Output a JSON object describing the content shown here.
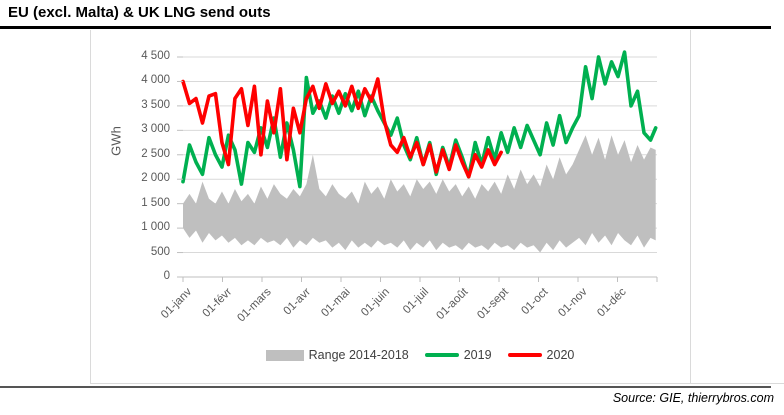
{
  "title": "EU (excl. Malta) & UK LNG send outs",
  "source": "Source: GIE, thierrybros.com",
  "y_axis_title": "GWh",
  "legend": [
    {
      "label": "Range 2014-2018",
      "color": "#BFBFBF",
      "swatch": "area"
    },
    {
      "label": "2019",
      "color": "#00B050",
      "swatch": "line"
    },
    {
      "label": "2020",
      "color": "#FF0000",
      "swatch": "line"
    }
  ],
  "colors": {
    "band": "#BFBFBF",
    "series_2019": "#00B050",
    "series_2020": "#FF0000",
    "gridline": "#D9D9D9",
    "axis": "#BFBFBF",
    "tick_label": "#595959"
  },
  "chart_data": {
    "type": "line",
    "title": "EU (excl. Malta) & UK LNG send outs",
    "xlabel": "",
    "ylabel": "GWh",
    "ylim": [
      0,
      4500
    ],
    "y_tick_step": 500,
    "y_tick_labels": [
      "0",
      "500",
      "1 000",
      "1 500",
      "2 000",
      "2 500",
      "3 000",
      "3 500",
      "4 000",
      "4 500"
    ],
    "x_tick_labels": [
      "01-janv",
      "01-févr",
      "01-mars",
      "01-avr",
      "01-mai",
      "01-juin",
      "01-juil",
      "01-août",
      "01-sept",
      "01-oct",
      "01-nov",
      "01-déc"
    ],
    "x_unit": "day_of_year",
    "x_range_days": [
      0,
      365
    ],
    "grid": "horizontal",
    "legend_position": "bottom",
    "band": {
      "name": "Range 2014-2018",
      "max_points": [
        [
          0,
          1500
        ],
        [
          5,
          1700
        ],
        [
          10,
          1500
        ],
        [
          15,
          1950
        ],
        [
          20,
          1600
        ],
        [
          25,
          1500
        ],
        [
          30,
          1750
        ],
        [
          35,
          1500
        ],
        [
          40,
          1800
        ],
        [
          45,
          1550
        ],
        [
          50,
          1700
        ],
        [
          55,
          1500
        ],
        [
          60,
          1850
        ],
        [
          65,
          1600
        ],
        [
          70,
          1900
        ],
        [
          75,
          1700
        ],
        [
          80,
          1600
        ],
        [
          85,
          1800
        ],
        [
          90,
          1650
        ],
        [
          95,
          1900
        ],
        [
          100,
          2500
        ],
        [
          105,
          1800
        ],
        [
          110,
          1650
        ],
        [
          115,
          1900
        ],
        [
          120,
          1700
        ],
        [
          125,
          1600
        ],
        [
          130,
          1750
        ],
        [
          135,
          1500
        ],
        [
          140,
          1950
        ],
        [
          145,
          1700
        ],
        [
          150,
          1850
        ],
        [
          155,
          1600
        ],
        [
          160,
          2000
        ],
        [
          165,
          1750
        ],
        [
          170,
          1900
        ],
        [
          175,
          1650
        ],
        [
          180,
          2000
        ],
        [
          185,
          1800
        ],
        [
          190,
          1950
        ],
        [
          195,
          1700
        ],
        [
          200,
          2000
        ],
        [
          205,
          1750
        ],
        [
          210,
          1900
        ],
        [
          215,
          1650
        ],
        [
          220,
          1850
        ],
        [
          225,
          1600
        ],
        [
          230,
          1900
        ],
        [
          235,
          1750
        ],
        [
          240,
          1950
        ],
        [
          245,
          1700
        ],
        [
          250,
          2100
        ],
        [
          255,
          1800
        ],
        [
          260,
          2200
        ],
        [
          265,
          1900
        ],
        [
          270,
          2100
        ],
        [
          275,
          1850
        ],
        [
          280,
          2300
        ],
        [
          285,
          2000
        ],
        [
          290,
          2450
        ],
        [
          295,
          2100
        ],
        [
          300,
          2300
        ],
        [
          305,
          2600
        ],
        [
          310,
          2900
        ],
        [
          315,
          2500
        ],
        [
          320,
          2850
        ],
        [
          325,
          2400
        ],
        [
          330,
          2900
        ],
        [
          335,
          2500
        ],
        [
          340,
          2800
        ],
        [
          345,
          2350
        ],
        [
          350,
          2700
        ],
        [
          355,
          2400
        ],
        [
          360,
          2650
        ],
        [
          364,
          2600
        ]
      ],
      "min_points": [
        [
          0,
          1000
        ],
        [
          5,
          800
        ],
        [
          10,
          950
        ],
        [
          15,
          700
        ],
        [
          20,
          900
        ],
        [
          25,
          750
        ],
        [
          30,
          850
        ],
        [
          35,
          700
        ],
        [
          40,
          800
        ],
        [
          45,
          650
        ],
        [
          50,
          750
        ],
        [
          55,
          650
        ],
        [
          60,
          800
        ],
        [
          65,
          700
        ],
        [
          70,
          750
        ],
        [
          75,
          650
        ],
        [
          80,
          800
        ],
        [
          85,
          600
        ],
        [
          90,
          750
        ],
        [
          95,
          650
        ],
        [
          100,
          800
        ],
        [
          105,
          700
        ],
        [
          110,
          750
        ],
        [
          115,
          600
        ],
        [
          120,
          700
        ],
        [
          125,
          550
        ],
        [
          130,
          750
        ],
        [
          135,
          600
        ],
        [
          140,
          700
        ],
        [
          145,
          600
        ],
        [
          150,
          750
        ],
        [
          155,
          650
        ],
        [
          160,
          700
        ],
        [
          165,
          600
        ],
        [
          170,
          750
        ],
        [
          175,
          550
        ],
        [
          180,
          700
        ],
        [
          185,
          600
        ],
        [
          190,
          750
        ],
        [
          195,
          550
        ],
        [
          200,
          700
        ],
        [
          205,
          600
        ],
        [
          210,
          650
        ],
        [
          215,
          550
        ],
        [
          220,
          700
        ],
        [
          225,
          600
        ],
        [
          230,
          650
        ],
        [
          235,
          550
        ],
        [
          240,
          700
        ],
        [
          245,
          600
        ],
        [
          250,
          650
        ],
        [
          255,
          550
        ],
        [
          260,
          700
        ],
        [
          265,
          600
        ],
        [
          270,
          650
        ],
        [
          275,
          500
        ],
        [
          280,
          700
        ],
        [
          285,
          550
        ],
        [
          290,
          750
        ],
        [
          295,
          600
        ],
        [
          300,
          700
        ],
        [
          305,
          800
        ],
        [
          310,
          650
        ],
        [
          315,
          900
        ],
        [
          320,
          700
        ],
        [
          325,
          850
        ],
        [
          330,
          650
        ],
        [
          335,
          900
        ],
        [
          340,
          750
        ],
        [
          345,
          650
        ],
        [
          350,
          850
        ],
        [
          355,
          600
        ],
        [
          360,
          800
        ],
        [
          364,
          750
        ]
      ]
    },
    "series": [
      {
        "name": "2019",
        "points": [
          [
            0,
            1950
          ],
          [
            5,
            2700
          ],
          [
            10,
            2350
          ],
          [
            15,
            2100
          ],
          [
            20,
            2850
          ],
          [
            25,
            2500
          ],
          [
            30,
            2250
          ],
          [
            35,
            2900
          ],
          [
            40,
            2600
          ],
          [
            45,
            1900
          ],
          [
            50,
            2750
          ],
          [
            55,
            2550
          ],
          [
            60,
            3050
          ],
          [
            65,
            2650
          ],
          [
            70,
            3250
          ],
          [
            75,
            2450
          ],
          [
            80,
            3150
          ],
          [
            85,
            2600
          ],
          [
            90,
            1850
          ],
          [
            95,
            4080
          ],
          [
            100,
            3350
          ],
          [
            105,
            3600
          ],
          [
            110,
            3250
          ],
          [
            115,
            3700
          ],
          [
            120,
            3350
          ],
          [
            125,
            3750
          ],
          [
            130,
            3400
          ],
          [
            135,
            3800
          ],
          [
            140,
            3300
          ],
          [
            145,
            3700
          ],
          [
            150,
            3400
          ],
          [
            155,
            3150
          ],
          [
            160,
            2900
          ],
          [
            165,
            3250
          ],
          [
            170,
            2700
          ],
          [
            175,
            2400
          ],
          [
            180,
            2850
          ],
          [
            185,
            2300
          ],
          [
            190,
            2750
          ],
          [
            195,
            2100
          ],
          [
            200,
            2650
          ],
          [
            205,
            2250
          ],
          [
            210,
            2800
          ],
          [
            215,
            2450
          ],
          [
            220,
            2050
          ],
          [
            225,
            2750
          ],
          [
            230,
            2300
          ],
          [
            235,
            2850
          ],
          [
            240,
            2400
          ],
          [
            245,
            2950
          ],
          [
            250,
            2550
          ],
          [
            255,
            3050
          ],
          [
            260,
            2650
          ],
          [
            265,
            3100
          ],
          [
            270,
            2800
          ],
          [
            275,
            2500
          ],
          [
            280,
            3150
          ],
          [
            285,
            2700
          ],
          [
            290,
            3300
          ],
          [
            295,
            2750
          ],
          [
            300,
            3050
          ],
          [
            305,
            3300
          ],
          [
            310,
            4300
          ],
          [
            315,
            3650
          ],
          [
            320,
            4500
          ],
          [
            325,
            3950
          ],
          [
            330,
            4400
          ],
          [
            335,
            4100
          ],
          [
            340,
            4600
          ],
          [
            345,
            3500
          ],
          [
            350,
            3800
          ],
          [
            355,
            2950
          ],
          [
            360,
            2800
          ],
          [
            364,
            3050
          ]
        ]
      },
      {
        "name": "2020",
        "points": [
          [
            0,
            4000
          ],
          [
            5,
            3550
          ],
          [
            10,
            3650
          ],
          [
            15,
            3150
          ],
          [
            20,
            3700
          ],
          [
            25,
            3750
          ],
          [
            30,
            2750
          ],
          [
            35,
            2300
          ],
          [
            40,
            3650
          ],
          [
            45,
            3850
          ],
          [
            50,
            3100
          ],
          [
            55,
            3900
          ],
          [
            60,
            2500
          ],
          [
            65,
            3600
          ],
          [
            70,
            2950
          ],
          [
            75,
            3850
          ],
          [
            80,
            2400
          ],
          [
            85,
            3450
          ],
          [
            90,
            2950
          ],
          [
            95,
            3650
          ],
          [
            100,
            3900
          ],
          [
            105,
            3450
          ],
          [
            110,
            3950
          ],
          [
            115,
            3550
          ],
          [
            120,
            3800
          ],
          [
            125,
            3500
          ],
          [
            130,
            3900
          ],
          [
            135,
            3450
          ],
          [
            140,
            3850
          ],
          [
            145,
            3600
          ],
          [
            150,
            4050
          ],
          [
            155,
            3200
          ],
          [
            160,
            2700
          ],
          [
            165,
            2550
          ],
          [
            170,
            2850
          ],
          [
            175,
            2450
          ],
          [
            180,
            2750
          ],
          [
            185,
            2300
          ],
          [
            190,
            2700
          ],
          [
            195,
            2150
          ],
          [
            200,
            2600
          ],
          [
            205,
            2200
          ],
          [
            210,
            2700
          ],
          [
            215,
            2350
          ],
          [
            220,
            2050
          ],
          [
            225,
            2500
          ],
          [
            230,
            2250
          ],
          [
            235,
            2600
          ],
          [
            240,
            2300
          ],
          [
            245,
            2550
          ]
        ]
      }
    ]
  }
}
